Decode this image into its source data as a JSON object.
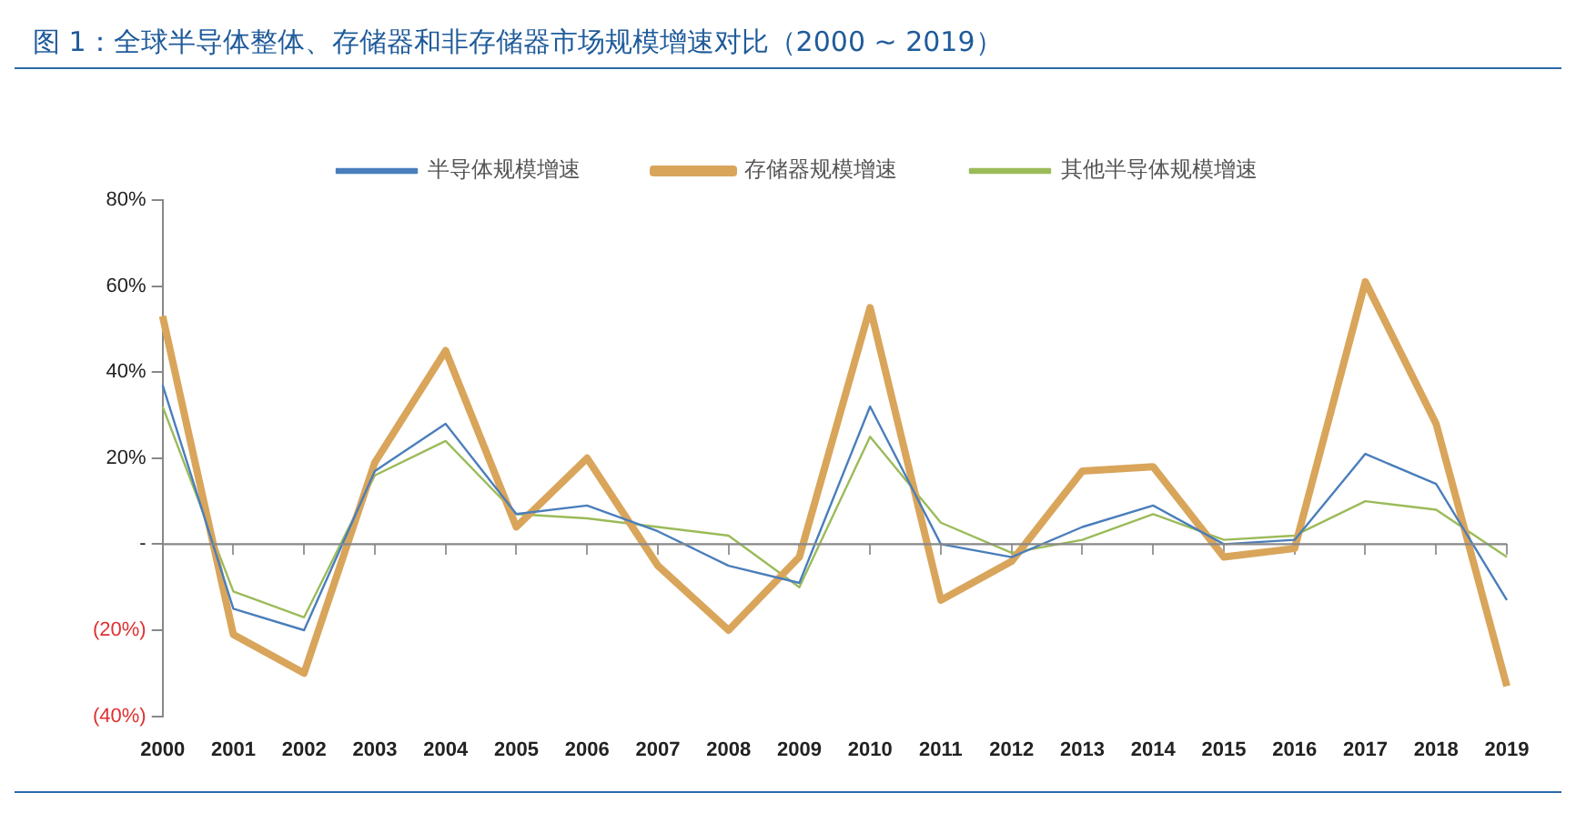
{
  "chart_data": {
    "type": "line",
    "title": "图 1：全球半导体整体、存储器和非存储器市场规模增速对比（2000 ~ 2019）",
    "categories": [
      "2000",
      "2001",
      "2002",
      "2003",
      "2004",
      "2005",
      "2006",
      "2007",
      "2008",
      "2009",
      "2010",
      "2011",
      "2012",
      "2013",
      "2014",
      "2015",
      "2016",
      "2017",
      "2018",
      "2019"
    ],
    "series": [
      {
        "name": "半导体规模增速",
        "color": "#4a7ebb",
        "values": [
          37,
          -15,
          -20,
          17,
          28,
          7,
          9,
          3,
          -5,
          -9,
          32,
          0,
          -3,
          4,
          9,
          0,
          1,
          21,
          14,
          -13
        ]
      },
      {
        "name": "存储器规模增速",
        "color": "#d9a55b",
        "values": [
          53,
          -21,
          -30,
          19,
          45,
          4,
          20,
          -5,
          -20,
          -3,
          55,
          -13,
          -4,
          17,
          18,
          -3,
          -1,
          61,
          28,
          -33
        ]
      },
      {
        "name": "其他半导体规模增速",
        "color": "#9bbb59",
        "values": [
          32,
          -11,
          -17,
          16,
          24,
          7,
          6,
          4,
          2,
          -10,
          25,
          5,
          -2,
          1,
          7,
          1,
          2,
          10,
          8,
          -3
        ]
      }
    ],
    "ylim": [
      -40,
      80
    ],
    "yticks": [
      {
        "value": -40,
        "label": "(40%)"
      },
      {
        "value": -20,
        "label": "(20%)"
      },
      {
        "value": 0,
        "label": "-"
      },
      {
        "value": 20,
        "label": "20%"
      },
      {
        "value": 40,
        "label": "40%"
      },
      {
        "value": 60,
        "label": "60%"
      },
      {
        "value": 80,
        "label": "80%"
      }
    ],
    "ref_lines": [
      {
        "axis": "y",
        "value": 0,
        "color": "#888888"
      }
    ],
    "grid": false,
    "legend": "top",
    "marker": "none",
    "line_style": "solid"
  }
}
